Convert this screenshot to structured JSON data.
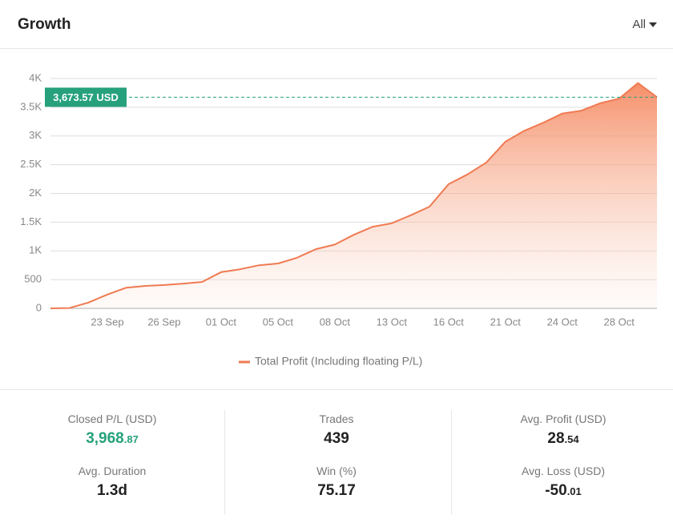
{
  "header": {
    "title": "Growth",
    "filter": "All"
  },
  "chart_data": {
    "type": "line",
    "categories": [
      null,
      null,
      null,
      "23 Sep",
      null,
      null,
      "26 Sep",
      null,
      null,
      "01 Oct",
      null,
      null,
      "05 Oct",
      null,
      null,
      "08 Oct",
      null,
      null,
      "13 Oct",
      null,
      null,
      "16 Oct",
      null,
      null,
      "21 Oct",
      null,
      null,
      "24 Oct",
      null,
      null,
      "28 Oct",
      null,
      null
    ],
    "series": [
      {
        "name": "Total Profit (Including floating P/L)",
        "color": "#f07a52",
        "values": [
          0,
          5,
          100,
          240,
          360,
          390,
          405,
          430,
          460,
          630,
          680,
          750,
          780,
          880,
          1030,
          1110,
          1280,
          1420,
          1480,
          1620,
          1770,
          2160,
          2330,
          2540,
          2900,
          3090,
          3230,
          3390,
          3440,
          3570,
          3650,
          3920,
          3673.57
        ]
      }
    ],
    "ylim": [
      0,
      4000
    ],
    "yticks": [
      0,
      500,
      {
        "value": 1000,
        "label": "1K"
      },
      {
        "value": 1500,
        "label": "1.5K"
      },
      {
        "value": 2000,
        "label": "2K"
      },
      {
        "value": 2500,
        "label": "2.5K"
      },
      {
        "value": 3000,
        "label": "3K"
      },
      {
        "value": 3500,
        "label": "3.5K"
      },
      {
        "value": 4000,
        "label": "4K"
      }
    ],
    "grid": true,
    "current_value": 3673.57,
    "current_label": "3,673.57 USD",
    "current_color": "#26a17b",
    "legend": "bottom"
  },
  "stats": [
    {
      "label": "Closed P/L (USD)",
      "value": "3,968",
      "decimals": ".87",
      "positive": true
    },
    {
      "label": "Avg. Duration",
      "value": "1.3d"
    },
    {
      "label": "Trades",
      "value": "439"
    },
    {
      "label": "Win (%)",
      "value": "75.17"
    },
    {
      "label": "Avg. Profit (USD)",
      "value": "28",
      "decimals": ".54"
    },
    {
      "label": "Avg. Loss (USD)",
      "value": "-50",
      "decimals": ".01"
    }
  ]
}
